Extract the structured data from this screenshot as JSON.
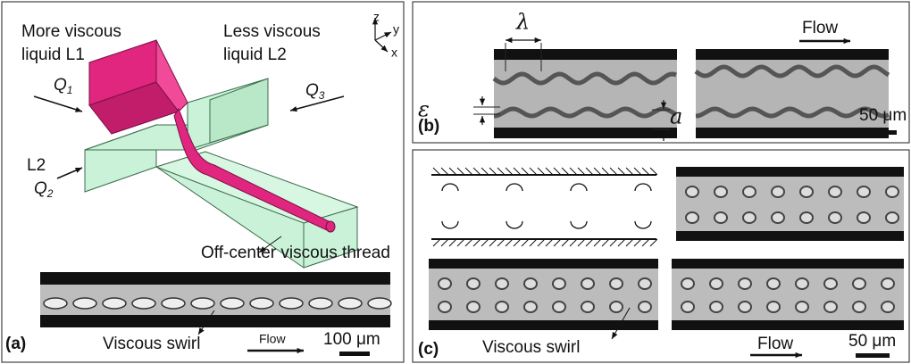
{
  "panel_a": {
    "label": "(a)",
    "more_viscous": [
      "More viscous",
      "liquid L1"
    ],
    "less_viscous": [
      "Less viscous",
      "liquid L2"
    ],
    "axes": [
      "z",
      "y",
      "x"
    ],
    "inlets": [
      {
        "symbol": "Q",
        "subscript": "1"
      },
      {
        "symbol": "Q",
        "subscript": "3"
      },
      {
        "symbol": "Q",
        "subscript": "2"
      }
    ],
    "inlet_liquid": "L2",
    "thread_label": "Off-center viscous thread",
    "swirl_label": "Viscous swirl",
    "flow": "Flow",
    "scale_bar": "100 μm"
  },
  "panel_b": {
    "label": "(b)",
    "wavelength": "λ",
    "thread_width": "ε",
    "amplitude": "a",
    "flow": "Flow",
    "scale_bar": "50 μm"
  },
  "panel_c": {
    "label": "(c)",
    "swirl_label": "Viscous swirl",
    "flow": "Flow",
    "scale_bar": "50 μm"
  }
}
